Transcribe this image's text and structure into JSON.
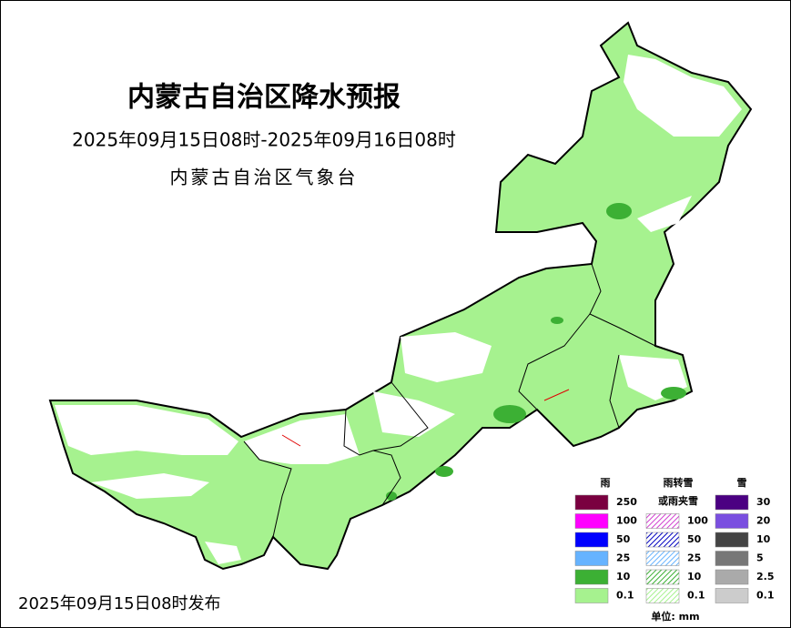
{
  "header": {
    "title": "内蒙古自治区降水预报",
    "subtitle": "2025年09月15日08时-2025年09月16日08时",
    "issuer": "内蒙古自治区气象台"
  },
  "footer": {
    "published": "2025年09月15日08时发布"
  },
  "legend": {
    "columns": [
      {
        "title_lines": [
          "雨"
        ],
        "hatched": false,
        "rows": [
          {
            "value": 250,
            "color": "#7a0040"
          },
          {
            "value": 100,
            "color": "#ff00ff"
          },
          {
            "value": 50,
            "color": "#0000ff"
          },
          {
            "value": 25,
            "color": "#66b3ff"
          },
          {
            "value": 10,
            "color": "#3cb034"
          },
          {
            "value": 0.1,
            "color": "#a6f28f"
          }
        ]
      },
      {
        "title_lines": [
          "雨转雪",
          "或雨夹雪"
        ],
        "hatched": true,
        "rows": [
          {
            "value": 100,
            "color": "#d040d0"
          },
          {
            "value": 50,
            "color": "#0000c0"
          },
          {
            "value": 25,
            "color": "#66b3ff"
          },
          {
            "value": 10,
            "color": "#3cb034"
          },
          {
            "value": 0.1,
            "color": "#a6f28f"
          }
        ]
      },
      {
        "title_lines": [
          "雪"
        ],
        "hatched": false,
        "rows": [
          {
            "value": 30,
            "color": "#4b0082"
          },
          {
            "value": 20,
            "color": "#7a4fe0"
          },
          {
            "value": 10,
            "color": "#444444"
          },
          {
            "value": 5,
            "color": "#777777"
          },
          {
            "value": 2.5,
            "color": "#aaaaaa"
          },
          {
            "value": 0.1,
            "color": "#cccccc"
          }
        ]
      }
    ],
    "unit": "单位: mm"
  }
}
